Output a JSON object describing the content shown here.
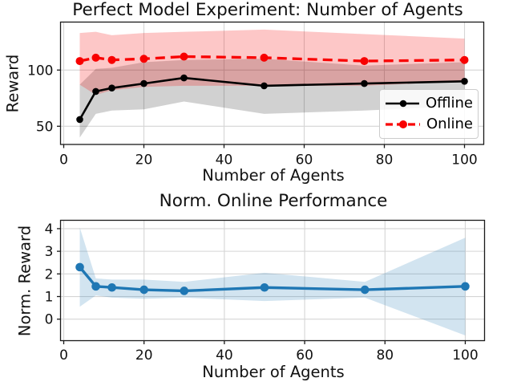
{
  "figure": {
    "background": "#ffffff",
    "text_color": "#111111",
    "grid_color": "#d5d5d5"
  },
  "chart_data": [
    {
      "type": "line",
      "title": "Perfect Model Experiment: Number of Agents",
      "xlabel": "Number of Agents",
      "ylabel": "Reward",
      "x": [
        4,
        8,
        12,
        20,
        30,
        50,
        75,
        100
      ],
      "xlim": [
        -0.8,
        104.8
      ],
      "ylim": [
        33.8,
        142.7
      ],
      "xticks": [
        0,
        20,
        40,
        60,
        80,
        100
      ],
      "yticks": [
        50,
        100
      ],
      "grid": true,
      "legend_position": "lower right",
      "series": [
        {
          "name": "Offline",
          "color": "#000000",
          "linestyle": "solid",
          "linewidth": 2.6,
          "marker": "circle",
          "marker_size": 4.3,
          "values": [
            56,
            81,
            84,
            88,
            93,
            86,
            88,
            90
          ],
          "band_low": [
            40,
            61,
            64,
            65,
            72,
            61,
            64,
            68
          ],
          "band_high": [
            87,
            101,
            102,
            107,
            109,
            110,
            104,
            107
          ],
          "band_color": "rgba(0,0,0,0.18)"
        },
        {
          "name": "Online",
          "color": "#f80000",
          "linestyle": "dashed",
          "linewidth": 3.3,
          "marker": "circle",
          "marker_size": 5,
          "values": [
            108,
            111,
            109,
            110,
            112,
            111,
            108,
            109
          ],
          "band_low": [
            87,
            78,
            82,
            85,
            86,
            86,
            86,
            90
          ],
          "band_high": [
            133,
            134,
            131,
            133,
            134,
            136,
            132,
            128
          ],
          "band_color": "rgba(248,0,0,0.22)"
        }
      ]
    },
    {
      "type": "line",
      "title": "Norm. Online Performance",
      "xlabel": "Number of Agents",
      "ylabel": "Norm. Reward",
      "x": [
        4,
        8,
        12,
        20,
        30,
        50,
        75,
        100
      ],
      "xlim": [
        -0.8,
        104.8
      ],
      "ylim": [
        -0.95,
        4.37
      ],
      "xticks": [
        0,
        20,
        40,
        60,
        80,
        100
      ],
      "yticks": [
        0,
        1,
        2,
        3,
        4
      ],
      "grid": true,
      "series": [
        {
          "name": "Norm. Online",
          "color": "#1f77b4",
          "linestyle": "solid",
          "linewidth": 3.4,
          "marker": "circle",
          "marker_size": 5.3,
          "values": [
            2.3,
            1.45,
            1.4,
            1.3,
            1.25,
            1.4,
            1.3,
            1.45
          ],
          "band_low": [
            0.55,
            1.05,
            0.95,
            0.9,
            0.95,
            0.8,
            0.95,
            -0.72
          ],
          "band_high": [
            4.05,
            1.8,
            1.75,
            1.75,
            1.65,
            2.05,
            1.65,
            3.6
          ],
          "band_color": "rgba(31,119,180,0.2)"
        }
      ]
    }
  ]
}
